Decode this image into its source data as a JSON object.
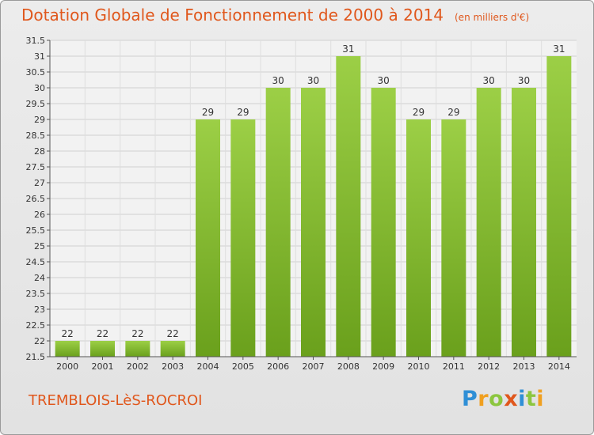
{
  "chart_data": {
    "type": "bar",
    "title": "Dotation Globale de Fonctionnement de 2000 à 2014",
    "subtitle": "(en milliers d'€)",
    "categories": [
      "2000",
      "2001",
      "2002",
      "2003",
      "2004",
      "2005",
      "2006",
      "2007",
      "2008",
      "2009",
      "2010",
      "2011",
      "2012",
      "2013",
      "2014"
    ],
    "values": [
      22,
      22,
      22,
      22,
      29,
      29,
      30,
      30,
      31,
      30,
      29,
      29,
      30,
      30,
      31
    ],
    "ylim": [
      21.5,
      31.5
    ],
    "yticks": [
      21.5,
      22,
      22.5,
      23,
      23.5,
      24,
      24.5,
      25,
      25.5,
      26,
      26.5,
      27,
      27.5,
      28,
      28.5,
      29,
      29.5,
      30,
      30.5,
      31,
      31.5
    ],
    "xlabel": "",
    "ylabel": "",
    "grid": true,
    "bar_color_top": "#9ccf46",
    "bar_color_bottom": "#6aa01c"
  },
  "footer": {
    "town": "TREMBLOIS-LèS-ROCROI",
    "logo_letters": [
      {
        "ch": "P",
        "color": "#2f8fd6"
      },
      {
        "ch": "r",
        "color": "#f0a020"
      },
      {
        "ch": "o",
        "color": "#8cc63f"
      },
      {
        "ch": "x",
        "color": "#e0571c"
      },
      {
        "ch": "i",
        "color": "#2f8fd6"
      },
      {
        "ch": "t",
        "color": "#8cc63f"
      },
      {
        "ch": "i",
        "color": "#f0a020"
      }
    ]
  }
}
